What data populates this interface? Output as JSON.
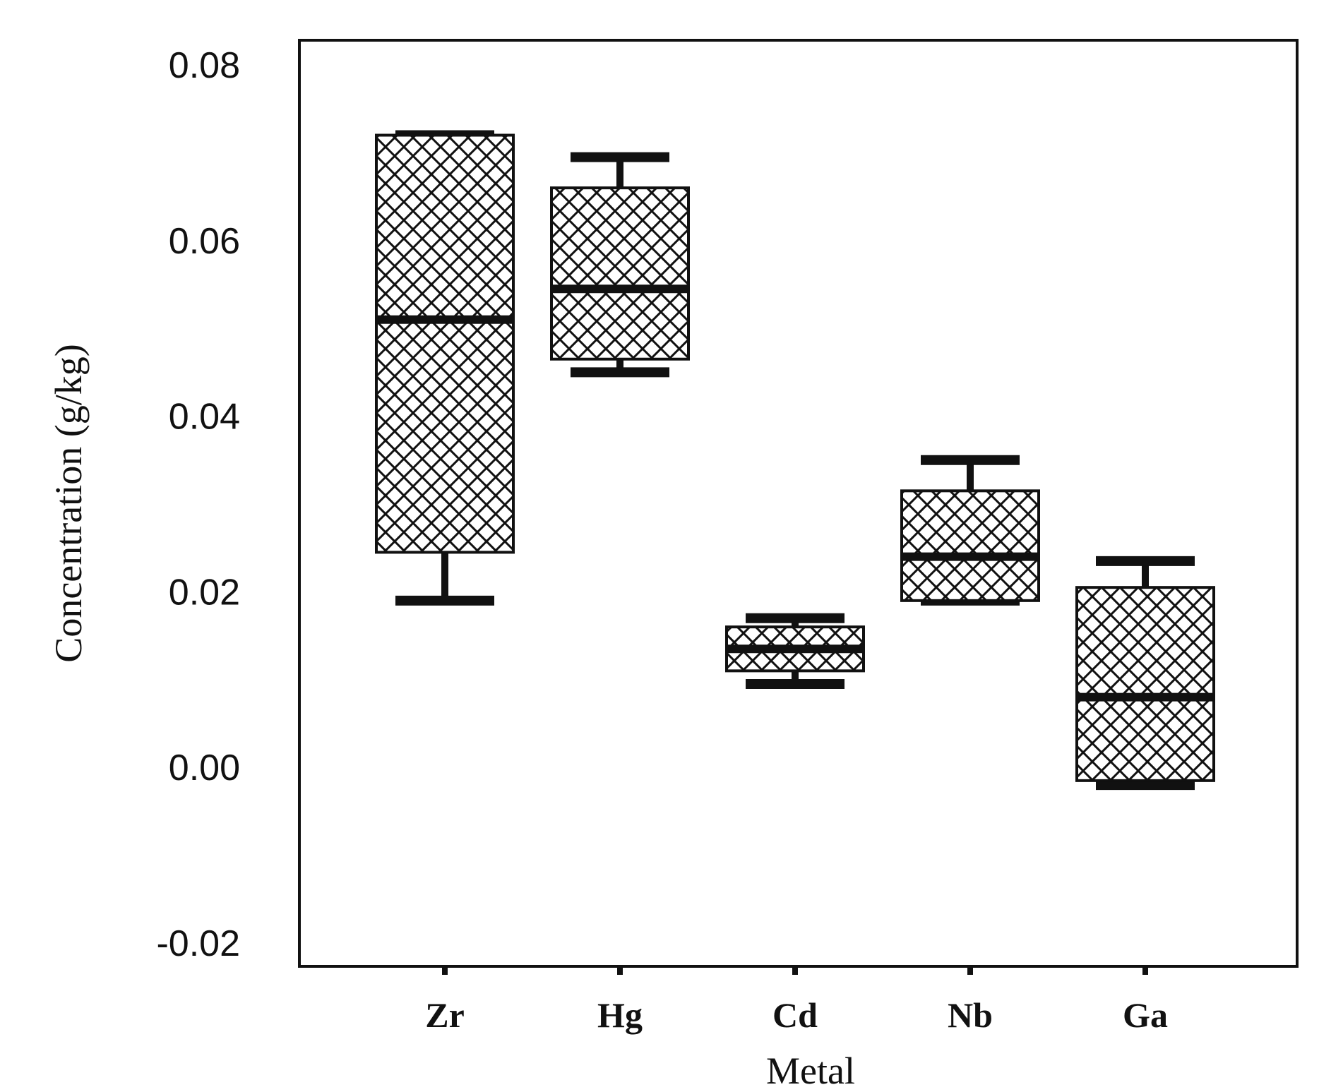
{
  "chart_data": {
    "type": "box",
    "title": "",
    "xlabel": "Metal",
    "ylabel": "Concentration (g/kg)",
    "ylim": [
      -0.02,
      0.08
    ],
    "yticks": [
      -0.02,
      0.0,
      0.02,
      0.04,
      0.06,
      0.08
    ],
    "ytick_labels": [
      "-0.02",
      "0.00",
      "0.02",
      "0.04",
      "0.06",
      "0.08"
    ],
    "categories": [
      "Zr",
      "Hg",
      "Cd",
      "Nb",
      "Ga"
    ],
    "boxes": [
      {
        "category": "Zr",
        "whisker_low": 0.019,
        "q1": 0.0245,
        "median": 0.051,
        "q3": 0.072,
        "whisker_high": 0.072
      },
      {
        "category": "Hg",
        "whisker_low": 0.045,
        "q1": 0.0465,
        "median": 0.0545,
        "q3": 0.066,
        "whisker_high": 0.0695
      },
      {
        "category": "Cd",
        "whisker_low": 0.0095,
        "q1": 0.011,
        "median": 0.0135,
        "q3": 0.016,
        "whisker_high": 0.017
      },
      {
        "category": "Nb",
        "whisker_low": 0.019,
        "q1": 0.019,
        "median": 0.024,
        "q3": 0.0315,
        "whisker_high": 0.035
      },
      {
        "category": "Ga",
        "whisker_low": -0.002,
        "q1": -0.0015,
        "median": 0.008,
        "q3": 0.0205,
        "whisker_high": 0.0235
      }
    ],
    "box_fill": "crosshatch",
    "line_color": "#111111",
    "grid": false,
    "legend": "none"
  }
}
